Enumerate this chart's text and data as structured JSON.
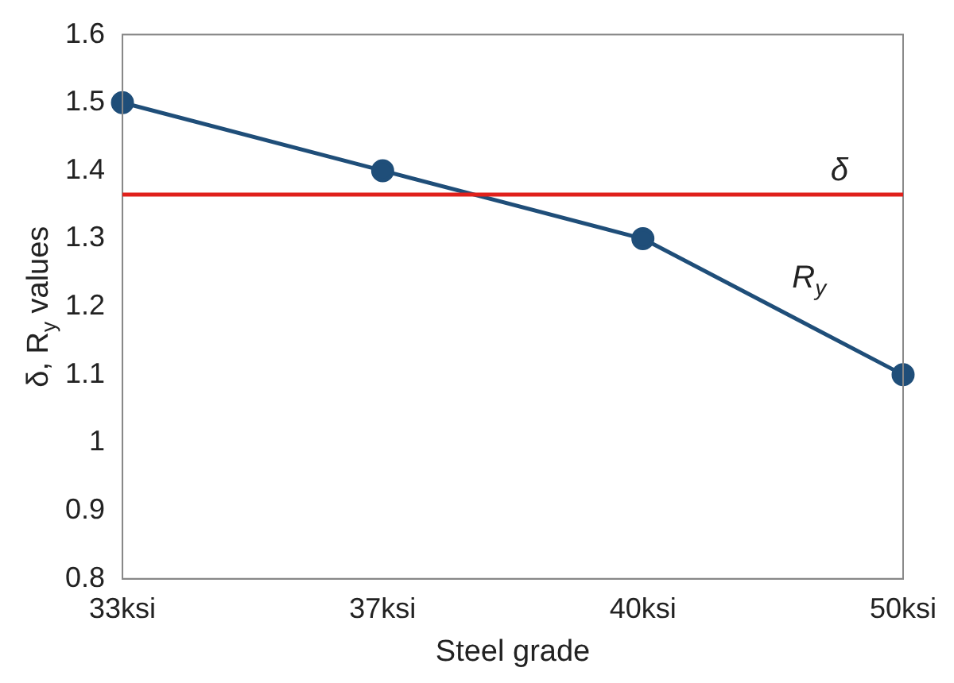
{
  "chart_data": {
    "type": "line",
    "xlabel": "Steel grade",
    "ylabel": "δ, R$_{y}$ values",
    "categories": [
      "33ksi",
      "37ksi",
      "40ksi",
      "50ksi"
    ],
    "series": [
      {
        "name": "R$_{y}$",
        "color": "#1f4e79",
        "values": [
          1.5,
          1.4,
          1.3,
          1.1
        ]
      }
    ],
    "ylim": [
      0.8,
      1.6
    ],
    "yticks": [
      0.8,
      0.9,
      1,
      1.1,
      1.2,
      1.3,
      1.4,
      1.5,
      1.6
    ],
    "ref_lines": [
      {
        "axis": "y",
        "value": 1.365,
        "label": "δ",
        "color": "#e0201b"
      }
    ],
    "grid": false,
    "legend": false,
    "marker": "circle",
    "line_style": "solid"
  }
}
